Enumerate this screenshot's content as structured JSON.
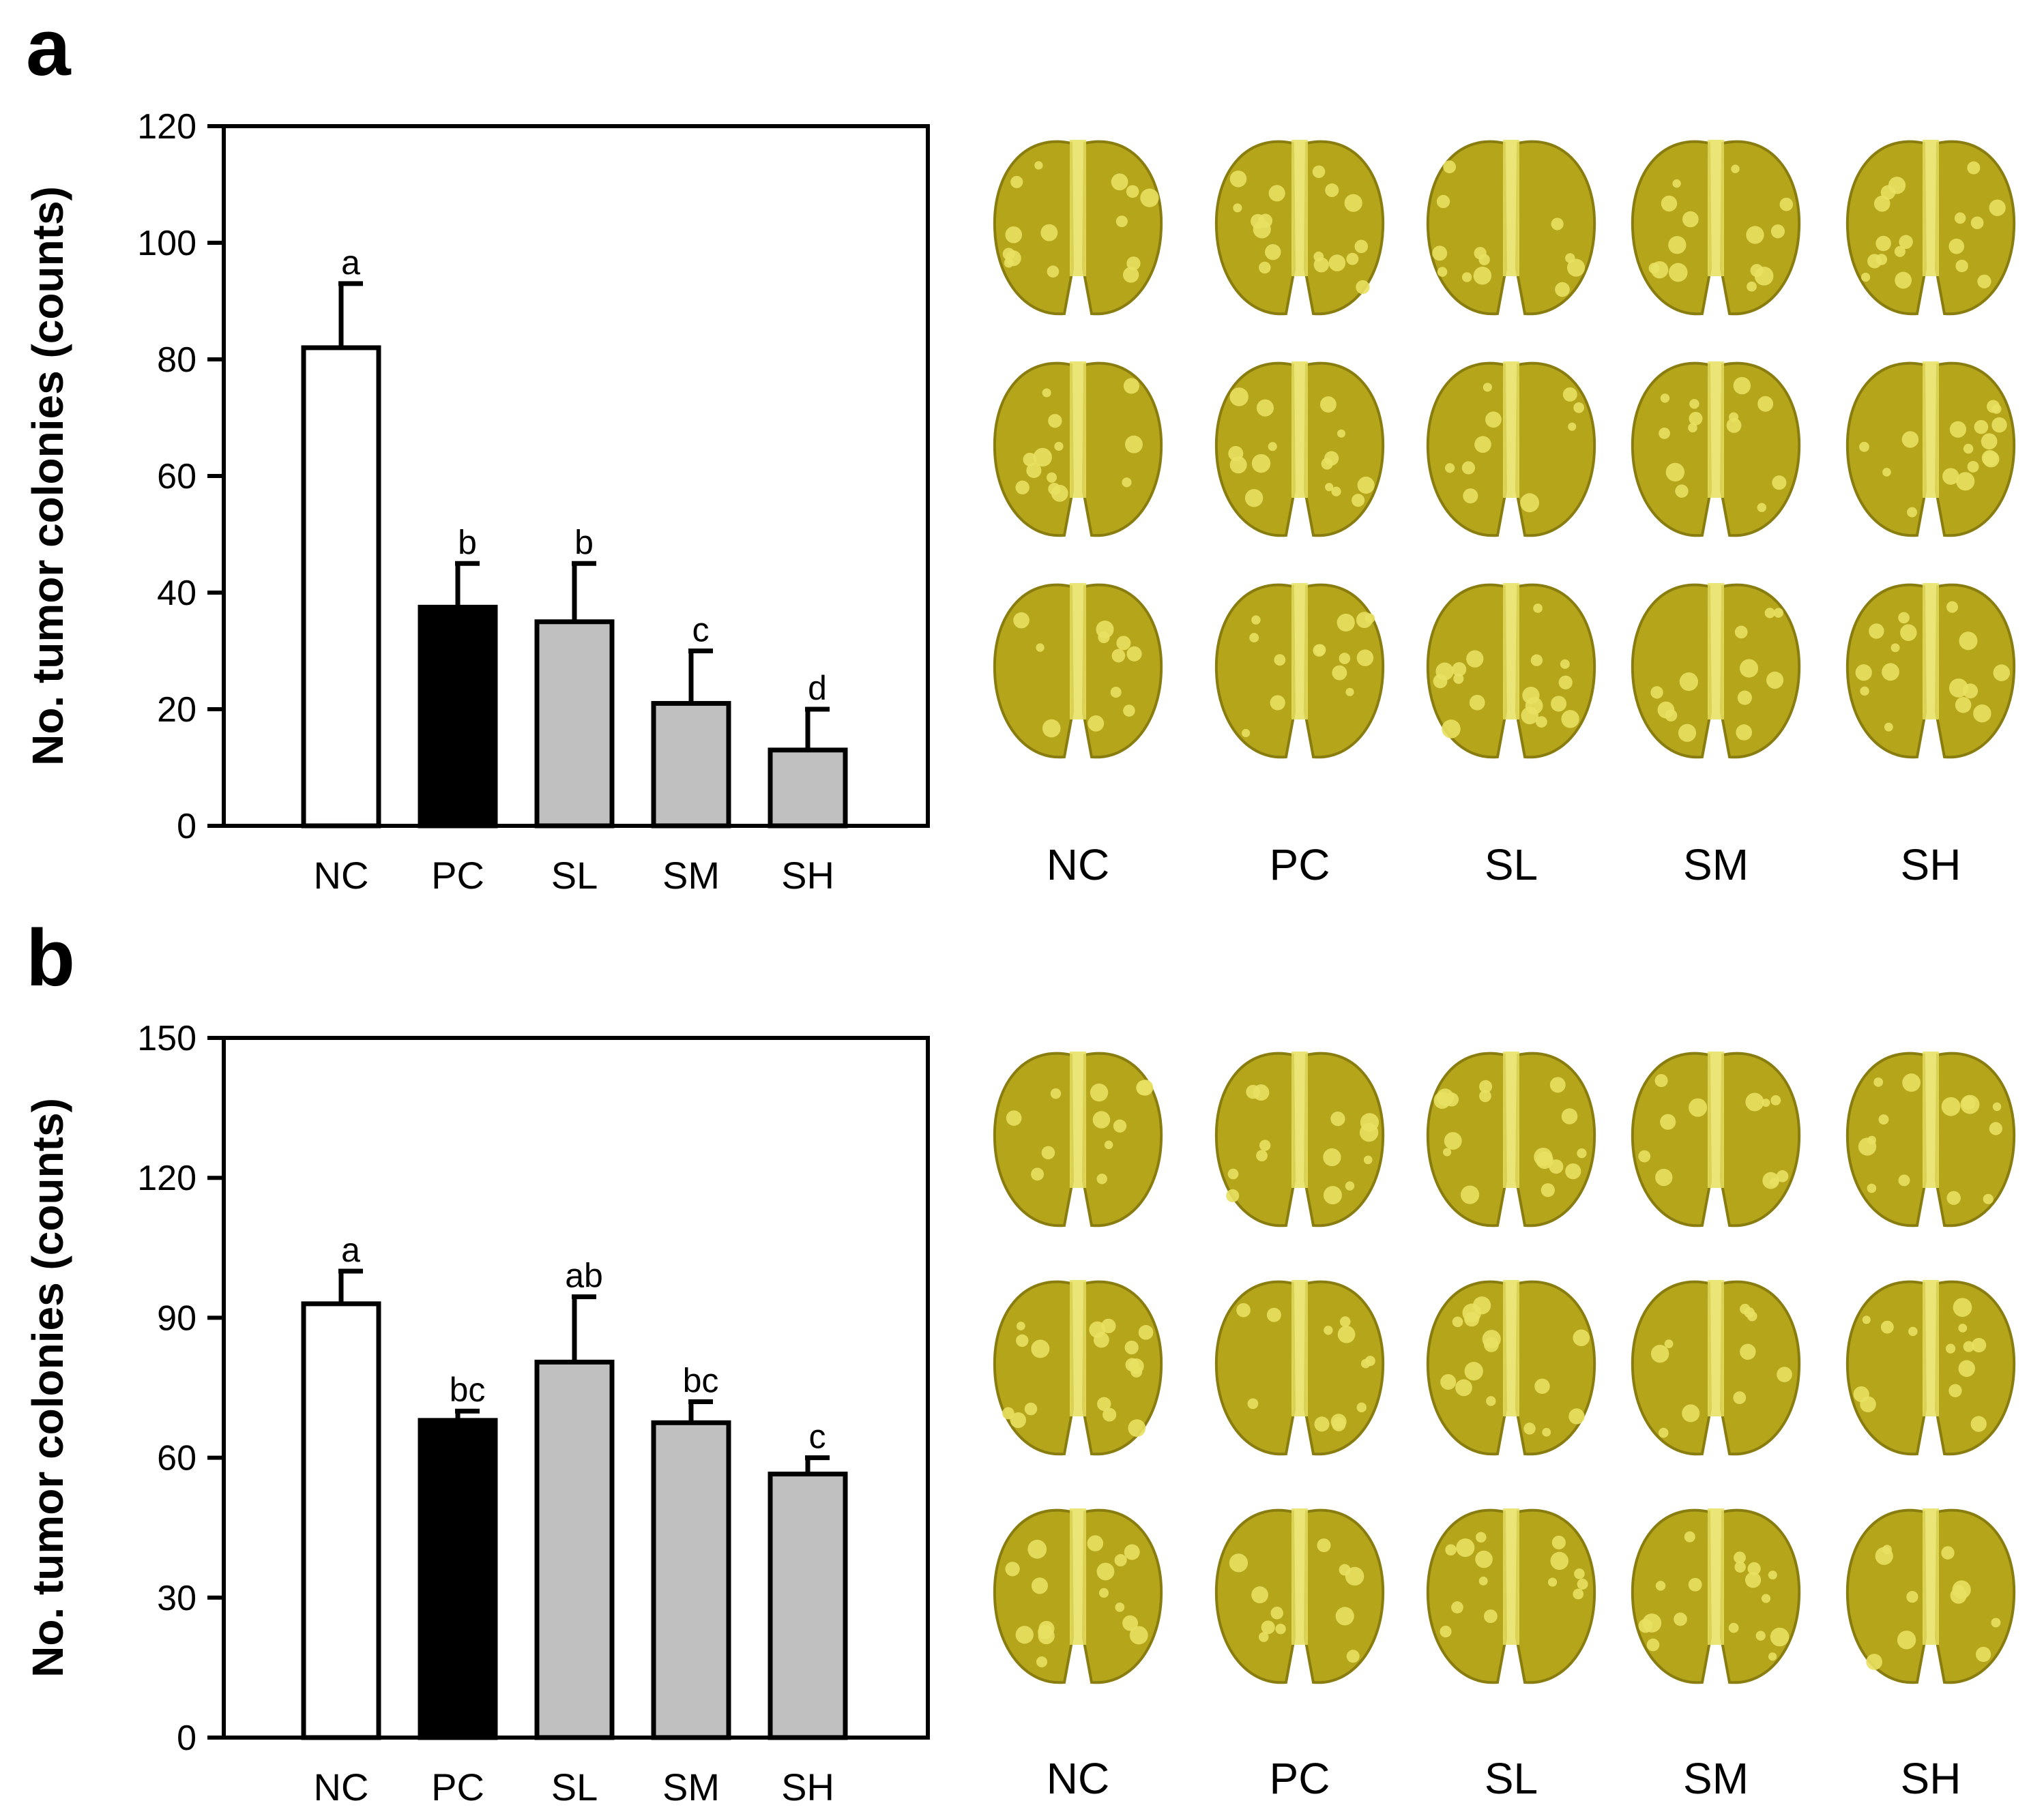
{
  "chart_data": [
    {
      "panel": "a",
      "type": "bar",
      "ylabel": "No. tumor colonies (counts)",
      "xlabel": "",
      "ylim": [
        0,
        120
      ],
      "yticks": [
        0,
        20,
        40,
        60,
        80,
        100,
        120
      ],
      "categories": [
        "NC",
        "PC",
        "SL",
        "SM",
        "SH"
      ],
      "values": [
        82,
        37.5,
        35,
        21,
        13
      ],
      "errors": [
        11,
        7.5,
        10,
        9,
        7
      ],
      "significance": [
        "a",
        "b",
        "b",
        "c",
        "d"
      ],
      "bar_colors": [
        "#ffffff",
        "#000000",
        "#c0c0c0",
        "#c0c0c0",
        "#c0c0c0"
      ],
      "photo_labels": [
        "NC",
        "PC",
        "SL",
        "SM",
        "SH"
      ]
    },
    {
      "panel": "b",
      "type": "bar",
      "ylabel": "No. tumor colonies (counts)",
      "xlabel": "",
      "ylim": [
        0,
        150
      ],
      "yticks": [
        0,
        30,
        60,
        90,
        120,
        150
      ],
      "categories": [
        "NC",
        "PC",
        "SL",
        "SM",
        "SH"
      ],
      "values": [
        93,
        68,
        80.5,
        67.5,
        56.5
      ],
      "errors": [
        7,
        2,
        14,
        4.5,
        3.5
      ],
      "significance": [
        "a",
        "bc",
        "ab",
        "bc",
        "c"
      ],
      "bar_colors": [
        "#ffffff",
        "#000000",
        "#c0c0c0",
        "#c0c0c0",
        "#c0c0c0"
      ],
      "photo_labels": [
        "NC",
        "PC",
        "SL",
        "SM",
        "SH"
      ]
    }
  ],
  "photo_colors": {
    "lung_fill": "#b5a51a",
    "lung_shadow": "#8a7d10",
    "nodule": "#e8e060"
  }
}
